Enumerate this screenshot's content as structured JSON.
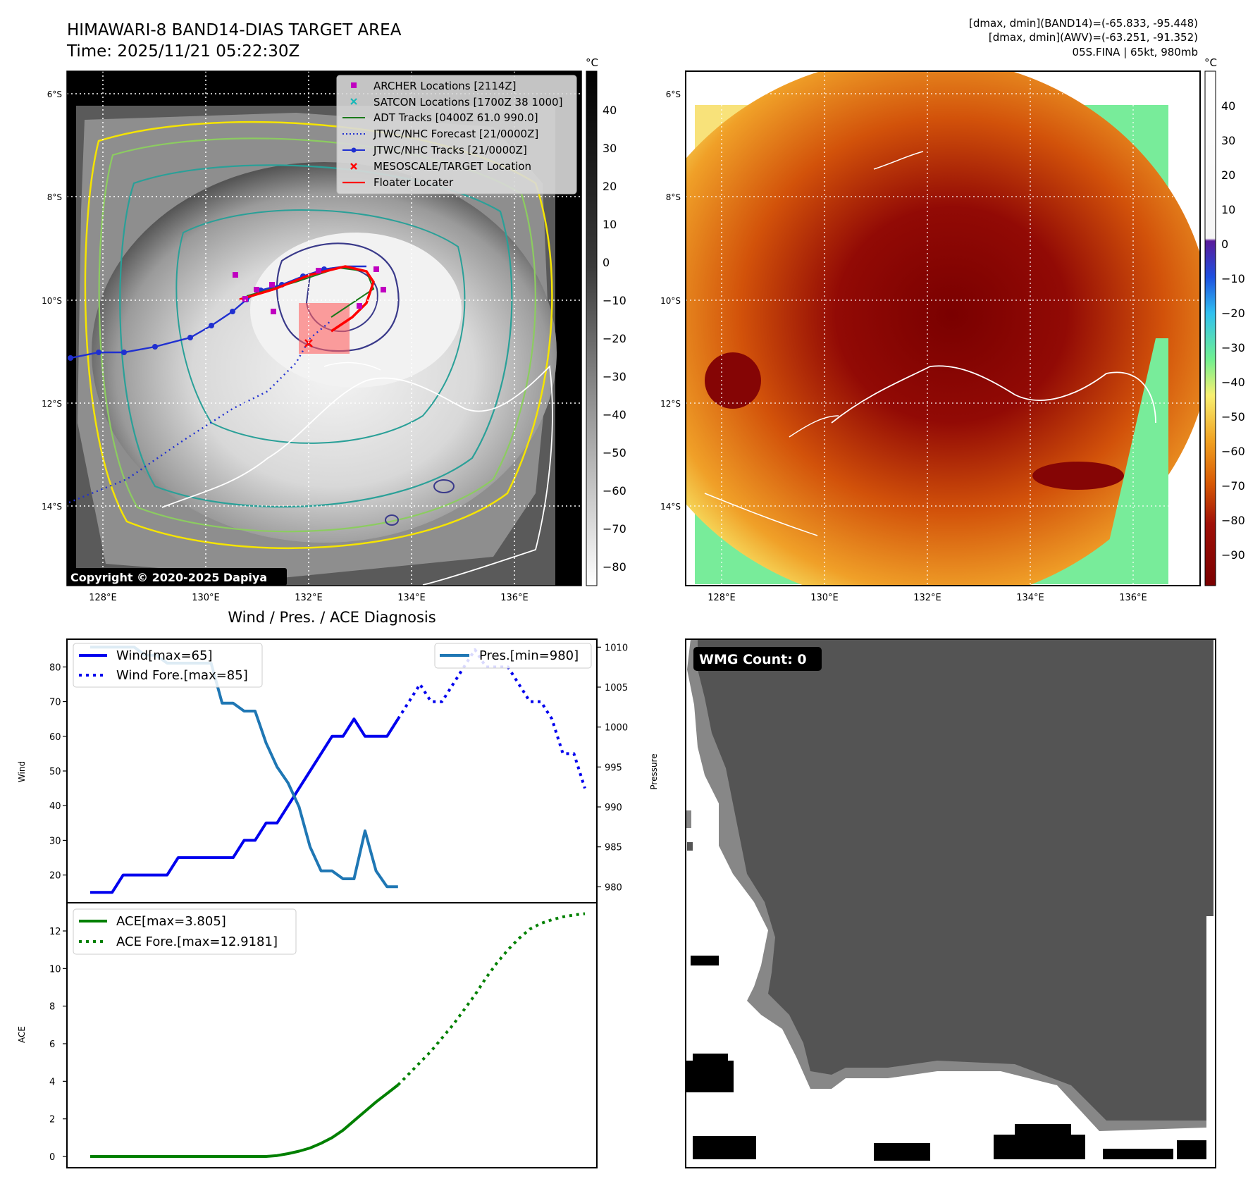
{
  "header": {
    "title_line1": "HIMAWARI-8 BAND14-DIAS TARGET AREA",
    "title_line2": "Time: 2025/11/21 05:22:30Z",
    "info_line1": "[dmax, dmin](BAND14)=(-65.833, -95.448)",
    "info_line2": "[dmax, dmin](AWV)=(-63.251, -91.352)",
    "info_line3": "05S.FINA | 65kt, 980mb"
  },
  "maps": {
    "unit_label": "°C",
    "lat_labels": [
      "6°S",
      "8°S",
      "10°S",
      "12°S",
      "14°S"
    ],
    "lon_labels": [
      "128°E",
      "130°E",
      "132°E",
      "134°E",
      "136°E"
    ],
    "gray_colorbar_ticks": [
      "40",
      "30",
      "20",
      "10",
      "0",
      "−10",
      "−20",
      "−30",
      "−40",
      "−50",
      "−60",
      "−70",
      "−80"
    ],
    "color_colorbar_ticks": [
      "40",
      "30",
      "20",
      "10",
      "0",
      "−10",
      "−20",
      "−30",
      "−40",
      "−50",
      "−60",
      "−70",
      "−80",
      "−90"
    ],
    "copyright": "Copyright © 2020-2025 Dapiya",
    "legend": [
      {
        "label": "ARCHER Locations [2114Z]",
        "icon": "magenta-square",
        "color": "#c000c0"
      },
      {
        "label": "SATCON Locations [1700Z 38 1000]",
        "icon": "cyan-x",
        "color": "#18b8b8"
      },
      {
        "label": "ADT Tracks [0400Z 61.0 990.0]",
        "icon": "green-line",
        "color": "#1a7a1a"
      },
      {
        "label": "JTWC/NHC Forecast [21/0000Z]",
        "icon": "blue-dotted-line",
        "color": "#2030d0"
      },
      {
        "label": "JTWC/NHC Tracks [21/0000Z]",
        "icon": "blue-dot-line",
        "color": "#2030d0"
      },
      {
        "label": "MESOSCALE/TARGET Location",
        "icon": "red-x",
        "color": "#ff0000"
      },
      {
        "label": "Floater Locater",
        "icon": "red-line",
        "color": "#ff0000"
      }
    ]
  },
  "diagnosis": {
    "title": "Wind / Pres. / ACE Diagnosis",
    "wind_label": "Wind",
    "pressure_label": "Pressure",
    "ace_label": "ACE",
    "legend_wind": "Wind[max=65]",
    "legend_wind_fore": "Wind Fore.[max=85]",
    "legend_pres": "Pres.[min=980]",
    "legend_ace": "ACE[max=3.805]",
    "legend_ace_fore": "ACE Fore.[max=12.9181]",
    "wmg_label": "WMG Count: 0"
  },
  "colors": {
    "wind": "#0000ee",
    "pressure": "#1f77b4",
    "ace": "#008000"
  },
  "chart_data": [
    {
      "type": "line",
      "title": "Wind / Pres. / ACE Diagnosis",
      "ylabel": "Wind",
      "ylim": [
        12,
        88
      ],
      "yticks": [
        20,
        30,
        40,
        50,
        60,
        70,
        80
      ],
      "series": [
        {
          "name": "Wind[max=65]",
          "style": "solid",
          "color": "#0000ee",
          "x": [
            0,
            1,
            2,
            3,
            4,
            5,
            6,
            7,
            8,
            9,
            10,
            11,
            12,
            13,
            14,
            15,
            16,
            17,
            18,
            19,
            20,
            21,
            22,
            23,
            24,
            25,
            26,
            27,
            28
          ],
          "y": [
            15,
            15,
            15,
            20,
            20,
            20,
            20,
            20,
            25,
            25,
            25,
            25,
            25,
            25,
            30,
            30,
            35,
            35,
            40,
            45,
            50,
            55,
            60,
            60,
            65,
            60,
            60,
            60,
            65
          ]
        },
        {
          "name": "Wind Fore.[max=85]",
          "style": "dotted",
          "color": "#0000ee",
          "x": [
            28,
            29,
            30,
            31,
            32,
            33,
            34,
            35,
            36,
            37,
            38,
            39,
            40,
            41,
            42,
            43,
            44,
            45
          ],
          "y": [
            65,
            70,
            75,
            70,
            70,
            75,
            80,
            85,
            80,
            80,
            80,
            75,
            70,
            70,
            65,
            55,
            55,
            45
          ]
        }
      ]
    },
    {
      "type": "line",
      "ylabel": "Pressure",
      "ylim": [
        978,
        1011
      ],
      "yticks": [
        980,
        985,
        990,
        995,
        1000,
        1005,
        1010
      ],
      "series": [
        {
          "name": "Pres.[min=980]",
          "style": "solid",
          "color": "#1f77b4",
          "x": [
            0,
            1,
            2,
            3,
            4,
            5,
            6,
            7,
            8,
            9,
            10,
            11,
            12,
            13,
            14,
            15,
            16,
            17,
            18,
            19,
            20,
            21,
            22,
            23,
            24,
            25,
            26,
            27,
            28
          ],
          "y": [
            1010,
            1010,
            1010,
            1010,
            1010,
            1009,
            1009,
            1008,
            1008,
            1008,
            1008,
            1008,
            1003,
            1003,
            1002,
            1002,
            998,
            995,
            993,
            990,
            985,
            982,
            982,
            981,
            981,
            987,
            982,
            980,
            980
          ]
        }
      ]
    },
    {
      "type": "line",
      "ylabel": "ACE",
      "ylim": [
        -0.6,
        13.5
      ],
      "yticks": [
        0,
        2,
        4,
        6,
        8,
        10,
        12
      ],
      "series": [
        {
          "name": "ACE[max=3.805]",
          "style": "solid",
          "color": "#008000",
          "x": [
            0,
            2,
            4,
            6,
            8,
            10,
            12,
            14,
            16,
            17,
            18,
            19,
            20,
            21,
            22,
            23,
            24,
            25,
            26,
            27,
            28
          ],
          "y": [
            0,
            0,
            0,
            0,
            0,
            0,
            0,
            0,
            0,
            0.05,
            0.15,
            0.28,
            0.45,
            0.7,
            1.0,
            1.4,
            1.9,
            2.4,
            2.9,
            3.35,
            3.805
          ]
        },
        {
          "name": "ACE Fore.[max=12.9181]",
          "style": "dotted",
          "color": "#008000",
          "x": [
            28,
            29,
            30,
            31,
            32,
            33,
            34,
            35,
            36,
            37,
            38,
            39,
            40,
            41,
            42,
            43,
            44,
            45
          ],
          "y": [
            3.805,
            4.4,
            5.0,
            5.6,
            6.3,
            7.0,
            7.8,
            8.6,
            9.5,
            10.3,
            11.0,
            11.6,
            12.1,
            12.4,
            12.6,
            12.75,
            12.85,
            12.9181
          ]
        }
      ]
    }
  ]
}
